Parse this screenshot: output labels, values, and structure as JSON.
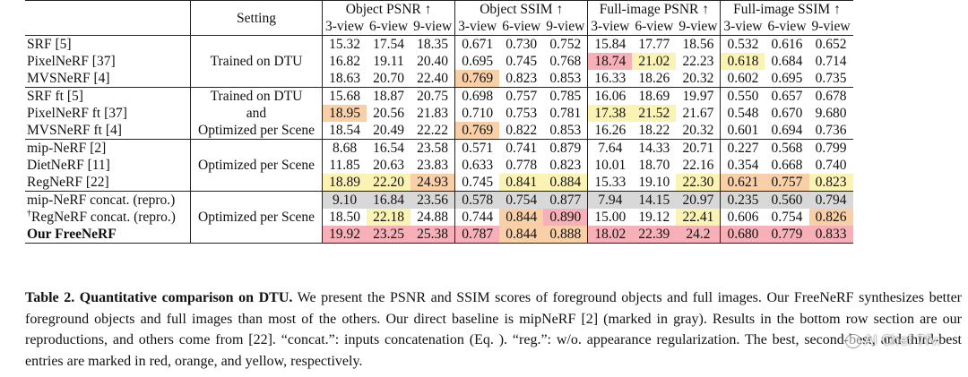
{
  "table": {
    "setting_header": "Setting",
    "groups": [
      "Object PSNR ↑",
      "Object SSIM ↑",
      "Full-image PSNR ↑",
      "Full-image SSIM ↑"
    ],
    "subheaders": [
      "3-view",
      "6-view",
      "9-view"
    ],
    "sections": [
      {
        "setting": [
          "Trained on DTU"
        ],
        "rows": [
          {
            "method": "SRF",
            "ref": "[5]",
            "values": [
              "15.32",
              "17.54",
              "18.35",
              "0.671",
              "0.730",
              "0.752",
              "15.84",
              "17.77",
              "18.56",
              "0.532",
              "0.616",
              "0.652"
            ]
          },
          {
            "method": "PixelNeRF",
            "ref": "[37]",
            "values": [
              "16.82",
              "19.11",
              "20.40",
              "0.695",
              "0.745",
              "0.768",
              "18.74",
              "21.02",
              "22.23",
              "0.618",
              "0.684",
              "0.714"
            ]
          },
          {
            "method": "MVSNeRF",
            "ref": "[4]",
            "values": [
              "18.63",
              "20.70",
              "22.40",
              "0.769",
              "0.823",
              "0.853",
              "16.33",
              "18.26",
              "20.32",
              "0.602",
              "0.695",
              "0.735"
            ]
          }
        ]
      },
      {
        "setting": [
          "Trained on DTU",
          "and",
          "Optimized per Scene"
        ],
        "rows": [
          {
            "method": "SRF ft",
            "ref": "[5]",
            "values": [
              "15.68",
              "18.87",
              "20.75",
              "0.698",
              "0.757",
              "0.785",
              "16.06",
              "18.69",
              "19.97",
              "0.550",
              "0.657",
              "0.678"
            ]
          },
          {
            "method": "PixelNeRF ft",
            "ref": "[37]",
            "values": [
              "18.95",
              "20.56",
              "21.83",
              "0.710",
              "0.753",
              "0.781",
              "17.38",
              "21.52",
              "21.67",
              "0.548",
              "0.670",
              "9.680"
            ]
          },
          {
            "method": "MVSNeRF ft",
            "ref": "[4]",
            "values": [
              "18.54",
              "20.49",
              "22.22",
              "0.769",
              "0.822",
              "0.853",
              "16.26",
              "18.22",
              "20.32",
              "0.601",
              "0.694",
              "0.736"
            ]
          }
        ]
      },
      {
        "setting": [
          "Optimized per Scene"
        ],
        "rows": [
          {
            "method": "mip-NeRF",
            "ref": "[2]",
            "values": [
              "8.68",
              "16.54",
              "23.58",
              "0.571",
              "0.741",
              "0.879",
              "7.64",
              "14.33",
              "20.71",
              "0.227",
              "0.568",
              "0.799"
            ]
          },
          {
            "method": "DietNeRF",
            "ref": "[11]",
            "values": [
              "11.85",
              "20.63",
              "23.83",
              "0.633",
              "0.778",
              "0.823",
              "10.01",
              "18.70",
              "22.16",
              "0.354",
              "0.668",
              "0.740"
            ]
          },
          {
            "method": "RegNeRF",
            "ref": "[22]",
            "values": [
              "18.89",
              "22.20",
              "24.93",
              "0.745",
              "0.841",
              "0.884",
              "15.33",
              "19.10",
              "22.30",
              "0.621",
              "0.757",
              "0.823"
            ]
          }
        ]
      },
      {
        "setting": [
          "Optimized per Scene"
        ],
        "rows": [
          {
            "method": "mip-NeRF concat. (repro.)",
            "ref": "",
            "values": [
              "9.10",
              "16.84",
              "23.56",
              "0.578",
              "0.754",
              "0.877",
              "7.94",
              "14.15",
              "20.97",
              "0.235",
              "0.560",
              "0.794"
            ]
          },
          {
            "method": "RegNeRF concat. (repro.)",
            "dagger": "†",
            "ref": "",
            "values": [
              "18.50",
              "22.18",
              "24.88",
              "0.744",
              "0.844",
              "0.890",
              "15.00",
              "19.12",
              "22.41",
              "0.606",
              "0.754",
              "0.826"
            ]
          },
          {
            "method": "Our FreeNeRF",
            "ref": "",
            "values": [
              "19.92",
              "23.25",
              "25.38",
              "0.787",
              "0.844",
              "0.888",
              "18.02",
              "22.39",
              "24.2",
              "0.680",
              "0.779",
              "0.833"
            ]
          }
        ]
      }
    ],
    "highlight_colors": {
      "red": "#f7b0b8",
      "orange": "#f8cfa6",
      "yellow": "#fbf3b4",
      "gray": "#d8d8d8"
    }
  },
  "caption": {
    "label": "Table 2.",
    "title": "Quantitative comparison on DTU.",
    "text1": " We present the PSNR and SSIM scores of foreground objects and full images. Our FreeNeRF synthesizes better foreground objects and full images than most of the others. Our direct baseline is mipNeRF ",
    "ref1": "[2]",
    "text2": " (marked in gray). Results in the bottom row section are our reproductions, and others come from ",
    "ref2": "[22]",
    "text3": ". “concat.”: inputs concatenation (Eq. ",
    "text4": "). “reg.”: w/o. appearance regularization. The best, second-best, and third-best entries are marked in red, orange, and yellow, respectively."
  },
  "watermark": {
    "text": "AI Chef 7fv."
  }
}
